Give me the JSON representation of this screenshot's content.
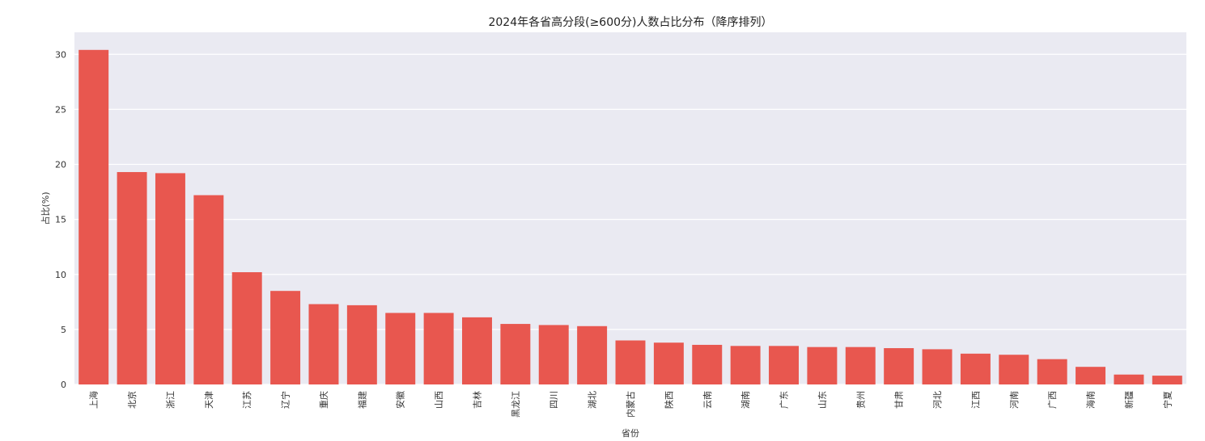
{
  "chart_data": {
    "type": "bar",
    "title": "2024年各省高分段(≥600分)人数占比分布（降序排列）",
    "xlabel": "省份",
    "ylabel": "占比(%)",
    "ylim": [
      0,
      32
    ],
    "yticks": [
      0,
      5,
      10,
      15,
      20,
      25,
      30
    ],
    "grid": true,
    "bar_color": "#e8574f",
    "background_color": "#eaeaf2",
    "categories": [
      "上海",
      "北京",
      "浙江",
      "天津",
      "江苏",
      "辽宁",
      "重庆",
      "福建",
      "安徽",
      "山西",
      "吉林",
      "黑龙江",
      "四川",
      "湖北",
      "内蒙古",
      "陕西",
      "云南",
      "湖南",
      "广东",
      "山东",
      "贵州",
      "甘肃",
      "河北",
      "江西",
      "河南",
      "广西",
      "海南",
      "新疆",
      "宁夏"
    ],
    "values": [
      30.4,
      19.3,
      19.2,
      17.2,
      10.2,
      8.5,
      7.3,
      7.2,
      6.5,
      6.5,
      6.1,
      5.5,
      5.4,
      5.3,
      4.0,
      3.8,
      3.6,
      3.5,
      3.5,
      3.4,
      3.4,
      3.3,
      3.2,
      2.8,
      2.7,
      2.3,
      1.6,
      0.9,
      0.8
    ]
  }
}
